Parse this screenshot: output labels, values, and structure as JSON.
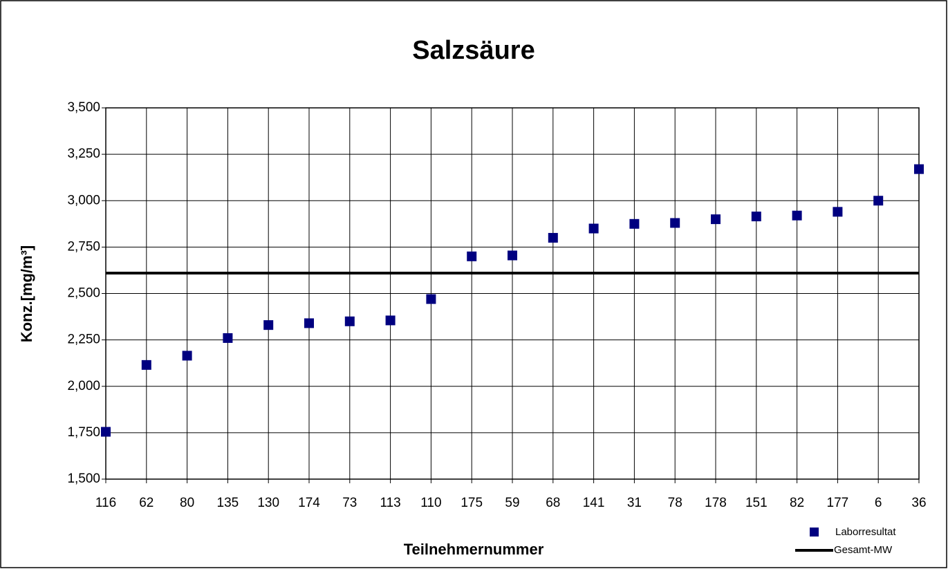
{
  "chart_data": {
    "type": "scatter",
    "title": "Salzsäure",
    "x_label": "Teilnehmernummer",
    "y_label": "Konz.[mg/m³]",
    "categories": [
      "116",
      "62",
      "80",
      "135",
      "130",
      "174",
      "73",
      "113",
      "110",
      "175",
      "59",
      "68",
      "141",
      "31",
      "78",
      "178",
      "151",
      "82",
      "177",
      "6",
      "36"
    ],
    "series": [
      {
        "name": "Laborresultat",
        "color": "#000080",
        "values": [
          1.755,
          2.115,
          2.165,
          2.26,
          2.33,
          2.34,
          2.35,
          2.355,
          2.47,
          2.7,
          2.705,
          2.8,
          2.85,
          2.875,
          2.88,
          2.9,
          2.915,
          2.92,
          2.94,
          3.0,
          3.17
        ]
      }
    ],
    "mean": {
      "name": "Gesamt-MW",
      "color": "#000000",
      "value": 2.61
    },
    "ylim": [
      1.5,
      3.5
    ],
    "yticks": [
      {
        "value": 1.5,
        "label": "1,500"
      },
      {
        "value": 1.75,
        "label": "1,750"
      },
      {
        "value": 2.0,
        "label": "2,000"
      },
      {
        "value": 2.25,
        "label": "2,250"
      },
      {
        "value": 2.5,
        "label": "2,500"
      },
      {
        "value": 2.75,
        "label": "2,750"
      },
      {
        "value": 3.0,
        "label": "3,000"
      },
      {
        "value": 3.25,
        "label": "3,250"
      },
      {
        "value": 3.5,
        "label": "3,500"
      }
    ],
    "grid": true,
    "legend": "bottom-right"
  }
}
